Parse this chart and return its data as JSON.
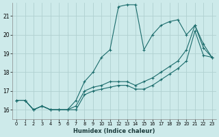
{
  "xlabel": "Humidex (Indice chaleur)",
  "background_color": "#cdeaea",
  "grid_color": "#b0d0d0",
  "line_color": "#1a6b6b",
  "xlim": [
    -0.5,
    23.5
  ],
  "ylim": [
    15.5,
    21.7
  ],
  "yticks": [
    16,
    17,
    18,
    19,
    20,
    21
  ],
  "xticks": [
    0,
    1,
    2,
    3,
    4,
    5,
    6,
    7,
    8,
    9,
    10,
    11,
    12,
    13,
    14,
    15,
    16,
    17,
    18,
    19,
    20,
    21,
    22,
    23
  ],
  "series": [
    [
      16.5,
      16.5,
      16.0,
      16.2,
      16.0,
      16.0,
      16.0,
      16.5,
      17.5,
      18.0,
      18.8,
      19.2,
      21.5,
      21.6,
      21.6,
      19.2,
      20.0,
      20.5,
      20.7,
      20.8,
      20.0,
      20.5,
      19.5,
      18.8
    ],
    [
      16.5,
      16.5,
      16.0,
      16.2,
      16.0,
      16.0,
      16.0,
      16.2,
      17.0,
      17.2,
      17.3,
      17.5,
      17.5,
      17.5,
      17.3,
      17.5,
      17.7,
      18.0,
      18.3,
      18.6,
      19.2,
      20.5,
      19.3,
      18.8
    ],
    [
      16.5,
      16.5,
      16.0,
      16.2,
      16.0,
      16.0,
      16.0,
      16.0,
      16.8,
      17.0,
      17.1,
      17.2,
      17.3,
      17.3,
      17.1,
      17.1,
      17.3,
      17.6,
      17.9,
      18.2,
      18.6,
      20.2,
      18.9,
      18.8
    ]
  ]
}
